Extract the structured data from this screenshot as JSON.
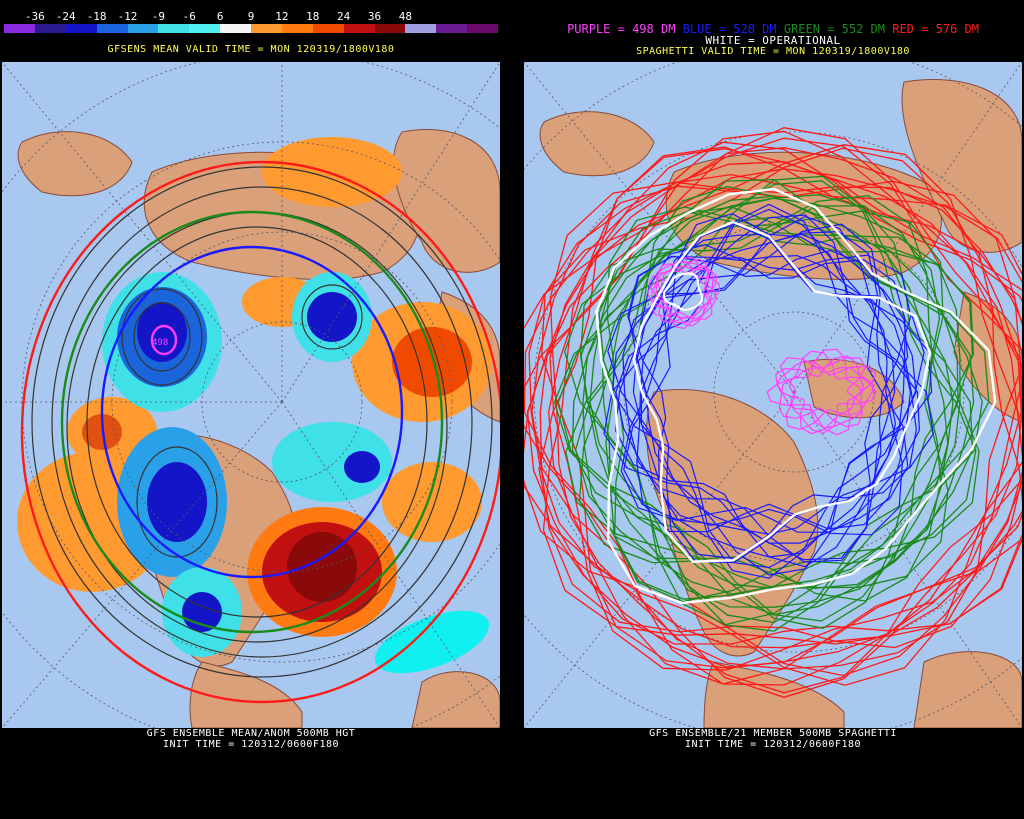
{
  "left": {
    "colorbar_ticks": [
      "-36",
      "-24",
      "-18",
      "-12",
      "-9",
      "-6",
      "6",
      "9",
      "12",
      "18",
      "24",
      "36",
      "48"
    ],
    "colorbar_colors": [
      "#8a2be2",
      "#2a1a8f",
      "#1515c8",
      "#1a64dc",
      "#2aa0e8",
      "#40e0e8",
      "#50f0f0",
      "#f4f4f4",
      "#ff9a30",
      "#ff7a10",
      "#f04a00",
      "#c01010",
      "#8a0a0a",
      "#a0a0e0",
      "#6b1a8f",
      "#6a0a6a"
    ],
    "title": "GFSENS MEAN VALID TIME = MON 120319/1800V180",
    "footer_line1": "GFS ENSEMBLE MEAN/ANOM 500MB HGT",
    "footer_line2": "INIT TIME = 120312/0600F180",
    "low_label": "498"
  },
  "right": {
    "legend": {
      "purple": "PURPLE = 498 DM",
      "blue": "BLUE = 528 DM",
      "green": "GREEN = 552 DM",
      "red": "RED = 576 DM"
    },
    "operational": "WHITE = OPERATIONAL",
    "title": "SPAGHETTI VALID TIME = MON 120319/1800V180",
    "footer_line1": "GFS ENSEMBLE/21 MEMBER 500MB SPAGHETTI",
    "footer_line2": "INIT TIME = 120312/0600F180"
  },
  "colors": {
    "ocean": "#a8c8f0",
    "land": "#d9a07a",
    "purple": "#ff40ff",
    "blue": "#1a1aff",
    "green": "#1a8a1a",
    "red": "#ff1a1a",
    "white": "#ffffff",
    "title_yellow": "#ffff55"
  }
}
